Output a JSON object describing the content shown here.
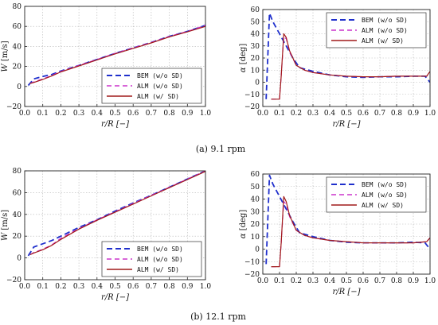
{
  "captions": {
    "a": "(a) 9.1 rpm",
    "b": "(b) 12.1 rpm"
  },
  "series_styles": [
    {
      "name": "BEM (w/o SD)",
      "color": "#1f2fcc",
      "dash": "7,4",
      "width": 1.8
    },
    {
      "name": "ALM (w/o SD)",
      "color": "#cc33cc",
      "dash": "6,4",
      "width": 1.2
    },
    {
      "name": "ALM (w/ SD)",
      "color": "#a11a1a",
      "dash": "",
      "width": 1.2
    }
  ],
  "chart_data": [
    {
      "id": "a-left",
      "type": "line",
      "xlabel": "r/R [−]",
      "ylabel_sym": "W",
      "ylabel_unit": "[m/s]",
      "xlim": [
        0,
        1
      ],
      "ylim": [
        -20,
        80
      ],
      "xticks": [
        0,
        0.1,
        0.2,
        0.3,
        0.4,
        0.5,
        0.6,
        0.7,
        0.8,
        0.9,
        1.0
      ],
      "xtick_labels": [
        "0.0",
        "0.1",
        "0.2",
        "0.3",
        "0.4",
        "0.5",
        "0.6",
        "0.7",
        "0.8",
        "0.9",
        "1.0"
      ],
      "yticks": [
        -20,
        0,
        20,
        40,
        60,
        80
      ],
      "ytick_labels": [
        "−20",
        "0",
        "20",
        "40",
        "60",
        "80"
      ],
      "legend": "bottom-right",
      "grid": true,
      "series": [
        {
          "name": "BEM (w/o SD)",
          "x": [
            0.02,
            0.05,
            0.1,
            0.15,
            0.2,
            0.3,
            0.4,
            0.5,
            0.6,
            0.7,
            0.8,
            0.9,
            1.0
          ],
          "y": [
            1,
            7.5,
            10,
            12,
            15.5,
            21,
            27,
            33,
            38.5,
            44,
            50,
            55,
            61
          ]
        },
        {
          "name": "ALM (w/o SD)",
          "x": [
            0.03,
            0.05,
            0.1,
            0.15,
            0.2,
            0.3,
            0.4,
            0.5,
            0.6,
            0.7,
            0.8,
            0.9,
            1.0
          ],
          "y": [
            3,
            4.5,
            7.5,
            11,
            15,
            21,
            27,
            33,
            38.5,
            44,
            50,
            55,
            61
          ]
        },
        {
          "name": "ALM (w/ SD)",
          "x": [
            0.03,
            0.05,
            0.1,
            0.15,
            0.2,
            0.3,
            0.4,
            0.5,
            0.6,
            0.7,
            0.8,
            0.9,
            1.0
          ],
          "y": [
            3,
            4,
            7,
            10.5,
            14.5,
            20.5,
            26.5,
            32.5,
            38,
            43.5,
            49.5,
            54.5,
            60
          ]
        }
      ]
    },
    {
      "id": "a-right",
      "type": "line",
      "xlabel": "r/R [−]",
      "ylabel_sym": "α",
      "ylabel_unit": "[deg]",
      "xlim": [
        0,
        1
      ],
      "ylim": [
        -20,
        60
      ],
      "xticks": [
        0,
        0.1,
        0.2,
        0.3,
        0.4,
        0.5,
        0.6,
        0.7,
        0.8,
        0.9,
        1.0
      ],
      "xtick_labels": [
        "0.0",
        "0.1",
        "0.2",
        "0.3",
        "0.4",
        "0.5",
        "0.6",
        "0.7",
        "0.8",
        "0.9",
        "1.0"
      ],
      "yticks": [
        -20,
        -10,
        0,
        10,
        20,
        30,
        40,
        50,
        60
      ],
      "ytick_labels": [
        "−20",
        "−10",
        "0",
        "10",
        "20",
        "30",
        "40",
        "50",
        "60"
      ],
      "legend": "top-right",
      "grid": true,
      "series": [
        {
          "name": "BEM (w/o SD)",
          "x": [
            0.02,
            0.04,
            0.06,
            0.1,
            0.14,
            0.18,
            0.22,
            0.3,
            0.4,
            0.5,
            0.6,
            0.7,
            0.8,
            0.9,
            0.97,
            1.0
          ],
          "y": [
            -14,
            57,
            50,
            40,
            30,
            20,
            12,
            9,
            6,
            4.5,
            4,
            4.5,
            4.5,
            5,
            5,
            0
          ]
        },
        {
          "name": "ALM (w/o SD)",
          "x": [
            0.05,
            0.1,
            0.11,
            0.125,
            0.14,
            0.16,
            0.2,
            0.25,
            0.3,
            0.4,
            0.5,
            0.6,
            0.7,
            0.8,
            0.9,
            0.98,
            1.0
          ],
          "y": [
            -14,
            -14,
            5,
            37,
            36,
            25,
            14,
            10,
            8,
            6,
            5,
            4.5,
            4.5,
            5,
            5,
            5,
            8
          ]
        },
        {
          "name": "ALM (w/ SD)",
          "x": [
            0.05,
            0.1,
            0.11,
            0.125,
            0.14,
            0.16,
            0.2,
            0.25,
            0.3,
            0.4,
            0.5,
            0.6,
            0.7,
            0.8,
            0.9,
            0.98,
            1.0
          ],
          "y": [
            -14,
            -14,
            5,
            40,
            37,
            26,
            14,
            10,
            8,
            6,
            5,
            4.5,
            4.5,
            5,
            5,
            5,
            9
          ]
        }
      ]
    },
    {
      "id": "b-left",
      "type": "line",
      "xlabel": "r/R [−]",
      "ylabel_sym": "W",
      "ylabel_unit": "[m/s]",
      "xlim": [
        0,
        1
      ],
      "ylim": [
        -20,
        80
      ],
      "xticks": [
        0,
        0.1,
        0.2,
        0.3,
        0.4,
        0.5,
        0.6,
        0.7,
        0.8,
        0.9,
        1.0
      ],
      "xtick_labels": [
        "0.0",
        "0.1",
        "0.2",
        "0.3",
        "0.4",
        "0.5",
        "0.6",
        "0.7",
        "0.8",
        "0.9",
        "1.0"
      ],
      "yticks": [
        -20,
        0,
        20,
        40,
        60,
        80
      ],
      "ytick_labels": [
        "−20",
        "0",
        "20",
        "40",
        "60",
        "80"
      ],
      "legend": "bottom-right",
      "grid": true,
      "series": [
        {
          "name": "BEM (w/o SD)",
          "x": [
            0.02,
            0.05,
            0.1,
            0.15,
            0.2,
            0.3,
            0.4,
            0.5,
            0.6,
            0.7,
            0.8,
            0.9,
            1.0
          ],
          "y": [
            2,
            10,
            13,
            16,
            20,
            28,
            35,
            43,
            50.5,
            57.5,
            65,
            72.5,
            80
          ]
        },
        {
          "name": "ALM (w/o SD)",
          "x": [
            0.03,
            0.05,
            0.1,
            0.15,
            0.2,
            0.3,
            0.4,
            0.5,
            0.6,
            0.7,
            0.8,
            0.9,
            1.0
          ],
          "y": [
            3,
            5,
            8,
            12,
            18,
            27,
            35,
            42.5,
            50,
            57.5,
            65,
            72.5,
            80
          ]
        },
        {
          "name": "ALM (w/ SD)",
          "x": [
            0.03,
            0.05,
            0.1,
            0.15,
            0.2,
            0.3,
            0.4,
            0.5,
            0.6,
            0.7,
            0.8,
            0.9,
            1.0
          ],
          "y": [
            3,
            4.5,
            7.5,
            11.5,
            17,
            26.5,
            34.5,
            42,
            49.5,
            57,
            64.5,
            72,
            79.5
          ]
        }
      ]
    },
    {
      "id": "b-right",
      "type": "line",
      "xlabel": "r/R [−]",
      "ylabel_sym": "α",
      "ylabel_unit": "[deg]",
      "xlim": [
        0,
        1
      ],
      "ylim": [
        -20,
        60
      ],
      "xticks": [
        0,
        0.1,
        0.2,
        0.3,
        0.4,
        0.5,
        0.6,
        0.7,
        0.8,
        0.9,
        1.0
      ],
      "xtick_labels": [
        "0.0",
        "0.1",
        "0.2",
        "0.3",
        "0.4",
        "0.5",
        "0.6",
        "0.7",
        "0.8",
        "0.9",
        "1.0"
      ],
      "yticks": [
        -20,
        -10,
        0,
        10,
        20,
        30,
        40,
        50,
        60
      ],
      "ytick_labels": [
        "−20",
        "−10",
        "0",
        "10",
        "20",
        "30",
        "40",
        "50",
        "60"
      ],
      "legend": "top-right",
      "grid": true,
      "series": [
        {
          "name": "BEM (w/o SD)",
          "x": [
            0.02,
            0.04,
            0.06,
            0.1,
            0.14,
            0.18,
            0.22,
            0.3,
            0.4,
            0.5,
            0.6,
            0.7,
            0.8,
            0.9,
            0.97,
            1.0
          ],
          "y": [
            -12,
            59,
            52,
            42,
            32,
            22,
            13,
            10,
            7,
            5.5,
            5,
            5,
            5,
            5.5,
            5,
            0
          ]
        },
        {
          "name": "ALM (w/o SD)",
          "x": [
            0.05,
            0.1,
            0.11,
            0.125,
            0.14,
            0.16,
            0.2,
            0.25,
            0.3,
            0.4,
            0.5,
            0.6,
            0.7,
            0.8,
            0.9,
            0.98,
            1.0
          ],
          "y": [
            -14,
            -14,
            5,
            38,
            36,
            26,
            15,
            11,
            9,
            7,
            6,
            5,
            5,
            5,
            5,
            6,
            9
          ]
        },
        {
          "name": "ALM (w/ SD)",
          "x": [
            0.05,
            0.1,
            0.11,
            0.125,
            0.14,
            0.16,
            0.2,
            0.25,
            0.3,
            0.4,
            0.5,
            0.6,
            0.7,
            0.8,
            0.9,
            0.98,
            1.0
          ],
          "y": [
            -14,
            -14,
            5,
            42,
            38,
            27,
            15,
            11,
            9,
            7,
            6,
            5,
            5,
            5,
            5,
            6,
            9
          ]
        }
      ]
    }
  ]
}
